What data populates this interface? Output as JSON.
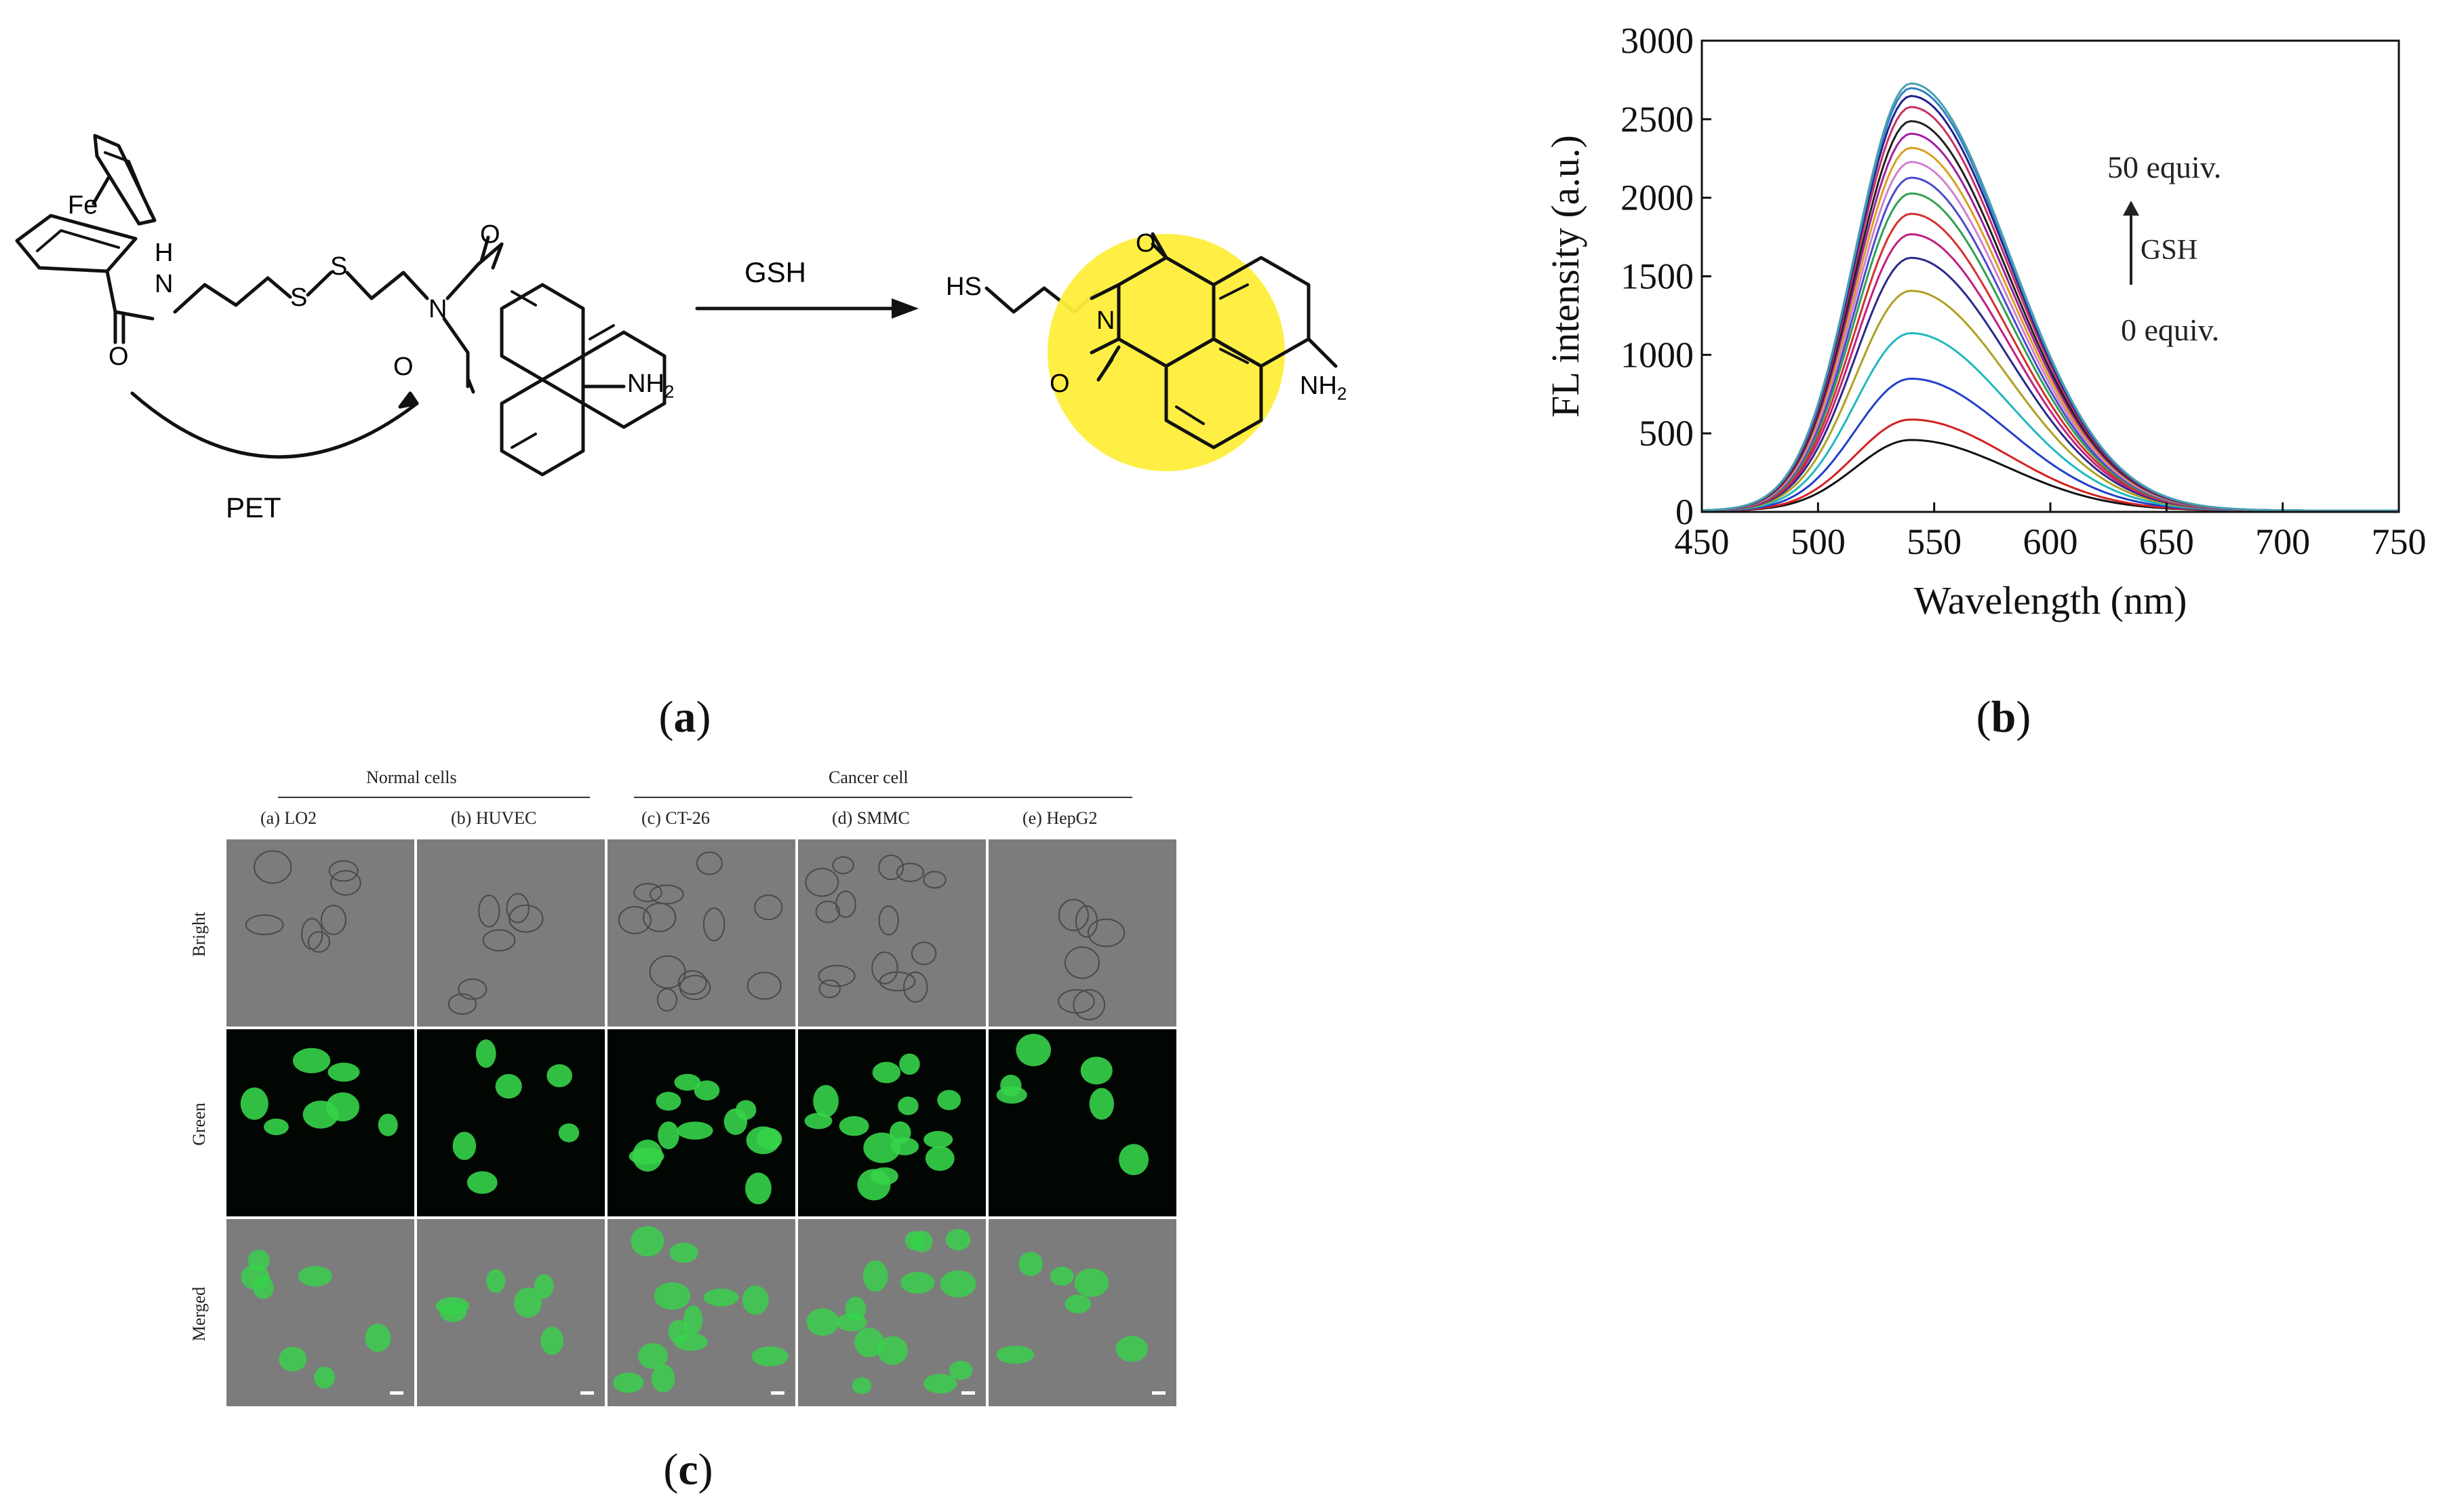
{
  "panel_a": {
    "label": "a",
    "atom_fe": "Fe",
    "atom_n_h": "H",
    "atom_n": "N",
    "atom_o1": "O",
    "atom_s1": "S",
    "atom_s2": "S",
    "atom_n2": "N",
    "atom_o_top": "O",
    "atom_o_bot": "O",
    "nh2_left": "NH",
    "nh2_left_sub": "2",
    "pet_label": "PET",
    "arrow_label": "GSH",
    "hs_label": "HS",
    "atom_n3": "N",
    "atom_o3_top": "O",
    "atom_o3_bot": "O",
    "nh2_right": "NH",
    "nh2_right_sub": "2",
    "highlight_color": "#ffee3a"
  },
  "panel_b": {
    "label": "b",
    "annot_top": "50 equiv.",
    "annot_mid": "GSH",
    "annot_bot": "0 equiv."
  },
  "chart_data": {
    "type": "line",
    "xlabel": "Wavelength (nm)",
    "ylabel": "FL intensity (a.u.)",
    "xlim": [
      450,
      750
    ],
    "ylim": [
      0,
      3000
    ],
    "xticks": [
      450,
      500,
      550,
      600,
      650,
      700,
      750
    ],
    "yticks": [
      0,
      500,
      1000,
      1500,
      2000,
      2500,
      3000
    ],
    "peak_wavelength": 540,
    "series_peaks": [
      450,
      580,
      840,
      1130,
      1400,
      1610,
      1760,
      1890,
      2020,
      2120,
      2220,
      2310,
      2400,
      2480,
      2570,
      2640,
      2690,
      2720
    ],
    "series_colors": [
      "#111111",
      "#d42020",
      "#2340c8",
      "#20b8c0",
      "#b0a020",
      "#2a2a8a",
      "#c02080",
      "#d43030",
      "#30a050",
      "#4a4ad0",
      "#d080d0",
      "#d8a020",
      "#a020a0",
      "#202020",
      "#c83060",
      "#202090",
      "#3080c0",
      "#4aa0b0"
    ]
  },
  "panel_c": {
    "label": "c",
    "group_normal": "Normal cells",
    "group_cancer": "Cancer cell",
    "columns": [
      "(a) LO2",
      "(b) HUVEC",
      "(c) CT-26",
      "(d) SMMC",
      "(e) HepG2"
    ],
    "rows": [
      "Bright",
      "Green",
      "Merged"
    ],
    "bright_color": "#7c7c7c",
    "green_bg": "#020602",
    "fluor_color": "#36d44a"
  }
}
